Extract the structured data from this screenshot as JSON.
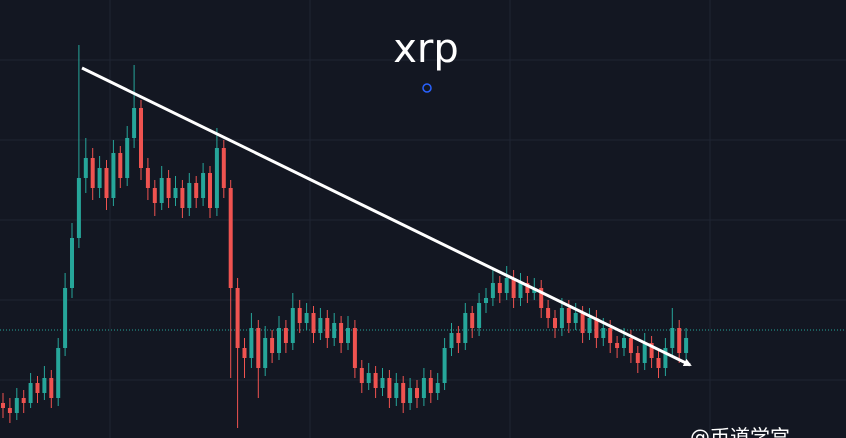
{
  "chart_data": {
    "type": "candlestick",
    "title": "xrp",
    "watermark": "@币道学宫",
    "up_color": "#26a69a",
    "down_color": "#ef5350",
    "ylim": [
      0,
      438
    ],
    "candles": [
      [
        35,
        45,
        20,
        30
      ],
      [
        30,
        40,
        15,
        25
      ],
      [
        25,
        50,
        18,
        40
      ],
      [
        40,
        48,
        25,
        35
      ],
      [
        35,
        65,
        30,
        55
      ],
      [
        55,
        62,
        35,
        45
      ],
      [
        45,
        72,
        38,
        60
      ],
      [
        60,
        68,
        30,
        40
      ],
      [
        40,
        100,
        32,
        90
      ],
      [
        90,
        165,
        82,
        150
      ],
      [
        150,
        215,
        140,
        200
      ],
      [
        200,
        393,
        190,
        260
      ],
      [
        260,
        300,
        245,
        280
      ],
      [
        280,
        290,
        238,
        250
      ],
      [
        250,
        282,
        240,
        270
      ],
      [
        270,
        278,
        228,
        240
      ],
      [
        240,
        298,
        232,
        285
      ],
      [
        285,
        292,
        250,
        260
      ],
      [
        260,
        312,
        252,
        300
      ],
      [
        300,
        373,
        290,
        330
      ],
      [
        330,
        338,
        258,
        270
      ],
      [
        270,
        280,
        238,
        250
      ],
      [
        250,
        258,
        222,
        235
      ],
      [
        235,
        272,
        228,
        260
      ],
      [
        260,
        268,
        230,
        240
      ],
      [
        240,
        262,
        232,
        250
      ],
      [
        250,
        258,
        220,
        230
      ],
      [
        230,
        265,
        222,
        255
      ],
      [
        255,
        262,
        230,
        240
      ],
      [
        240,
        275,
        232,
        265
      ],
      [
        265,
        272,
        220,
        230
      ],
      [
        230,
        310,
        222,
        290
      ],
      [
        290,
        298,
        240,
        250
      ],
      [
        250,
        258,
        60,
        150
      ],
      [
        150,
        160,
        10,
        90
      ],
      [
        90,
        100,
        60,
        80
      ],
      [
        80,
        125,
        70,
        110
      ],
      [
        110,
        118,
        40,
        70
      ],
      [
        70,
        112,
        62,
        100
      ],
      [
        100,
        108,
        75,
        85
      ],
      [
        85,
        122,
        78,
        110
      ],
      [
        110,
        118,
        85,
        95
      ],
      [
        95,
        145,
        88,
        130
      ],
      [
        130,
        138,
        105,
        115
      ],
      [
        115,
        135,
        108,
        125
      ],
      [
        125,
        132,
        95,
        105
      ],
      [
        105,
        130,
        98,
        120
      ],
      [
        120,
        128,
        90,
        100
      ],
      [
        100,
        125,
        92,
        115
      ],
      [
        115,
        122,
        85,
        95
      ],
      [
        95,
        122,
        88,
        110
      ],
      [
        110,
        118,
        60,
        70
      ],
      [
        70,
        78,
        45,
        55
      ],
      [
        55,
        75,
        48,
        65
      ],
      [
        65,
        72,
        40,
        50
      ],
      [
        50,
        70,
        42,
        60
      ],
      [
        60,
        68,
        30,
        40
      ],
      [
        40,
        65,
        32,
        55
      ],
      [
        55,
        62,
        25,
        35
      ],
      [
        35,
        60,
        28,
        50
      ],
      [
        50,
        58,
        30,
        40
      ],
      [
        40,
        70,
        32,
        60
      ],
      [
        60,
        68,
        35,
        45
      ],
      [
        45,
        65,
        38,
        55
      ],
      [
        55,
        100,
        48,
        90
      ],
      [
        90,
        115,
        82,
        105
      ],
      [
        105,
        112,
        85,
        95
      ],
      [
        95,
        135,
        88,
        125
      ],
      [
        125,
        132,
        100,
        110
      ],
      [
        110,
        145,
        102,
        135
      ],
      [
        135,
        150,
        125,
        140
      ],
      [
        140,
        168,
        132,
        155
      ],
      [
        155,
        162,
        135,
        145
      ],
      [
        145,
        172,
        138,
        160
      ],
      [
        160,
        168,
        130,
        140
      ],
      [
        140,
        165,
        132,
        155
      ],
      [
        155,
        162,
        135,
        145
      ],
      [
        145,
        160,
        138,
        150
      ],
      [
        150,
        158,
        120,
        130
      ],
      [
        130,
        138,
        110,
        120
      ],
      [
        120,
        128,
        100,
        110
      ],
      [
        110,
        140,
        102,
        130
      ],
      [
        130,
        138,
        105,
        115
      ],
      [
        115,
        135,
        108,
        125
      ],
      [
        125,
        132,
        95,
        105
      ],
      [
        105,
        130,
        98,
        120
      ],
      [
        120,
        128,
        90,
        100
      ],
      [
        100,
        120,
        92,
        110
      ],
      [
        110,
        118,
        85,
        95
      ],
      [
        95,
        102,
        80,
        90
      ],
      [
        90,
        110,
        82,
        100
      ],
      [
        100,
        108,
        75,
        85
      ],
      [
        85,
        92,
        65,
        75
      ],
      [
        75,
        105,
        68,
        95
      ],
      [
        95,
        102,
        70,
        80
      ],
      [
        80,
        88,
        60,
        70
      ],
      [
        70,
        100,
        62,
        90
      ],
      [
        90,
        130,
        82,
        110
      ],
      [
        110,
        118,
        75,
        85
      ],
      [
        85,
        110,
        78,
        100
      ]
    ]
  }
}
